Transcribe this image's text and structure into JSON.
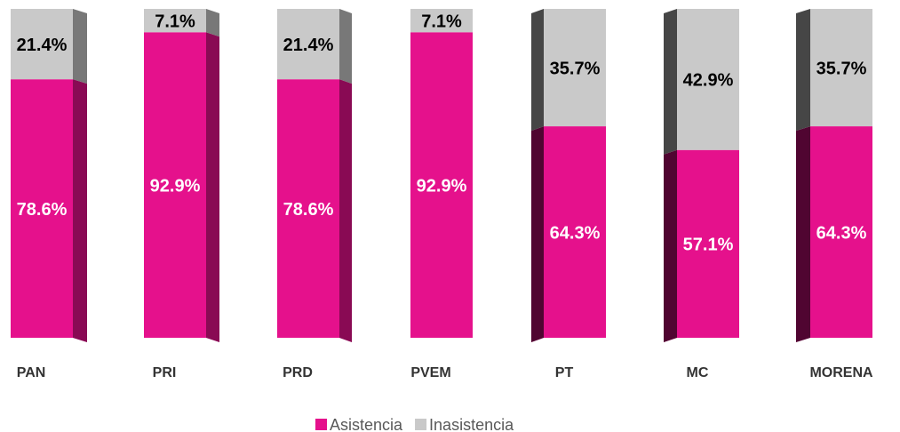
{
  "chart_data": {
    "type": "stacked_bar",
    "categories": [
      "PAN",
      "PRI",
      "PRD",
      "PVEM",
      "PT",
      "MC",
      "MORENA"
    ],
    "series": [
      {
        "name": "Asistencia",
        "color": "#e5118c",
        "values": [
          78.6,
          92.9,
          78.6,
          92.9,
          64.3,
          57.1,
          64.3
        ],
        "value_labels": [
          "78.6%",
          "92.9%",
          "78.6%",
          "92.9%",
          "64.3%",
          "57.1%",
          "64.3%"
        ]
      },
      {
        "name": "Inasistencia",
        "color": "#c9c9c9",
        "values": [
          21.4,
          7.1,
          21.4,
          7.1,
          35.7,
          42.9,
          35.7
        ],
        "value_labels": [
          "21.4%",
          "7.1%",
          "21.4%",
          "7.1%",
          "35.7%",
          "42.9%",
          "35.7%"
        ]
      }
    ],
    "ylim": [
      0,
      100
    ],
    "legend": "bottom"
  }
}
